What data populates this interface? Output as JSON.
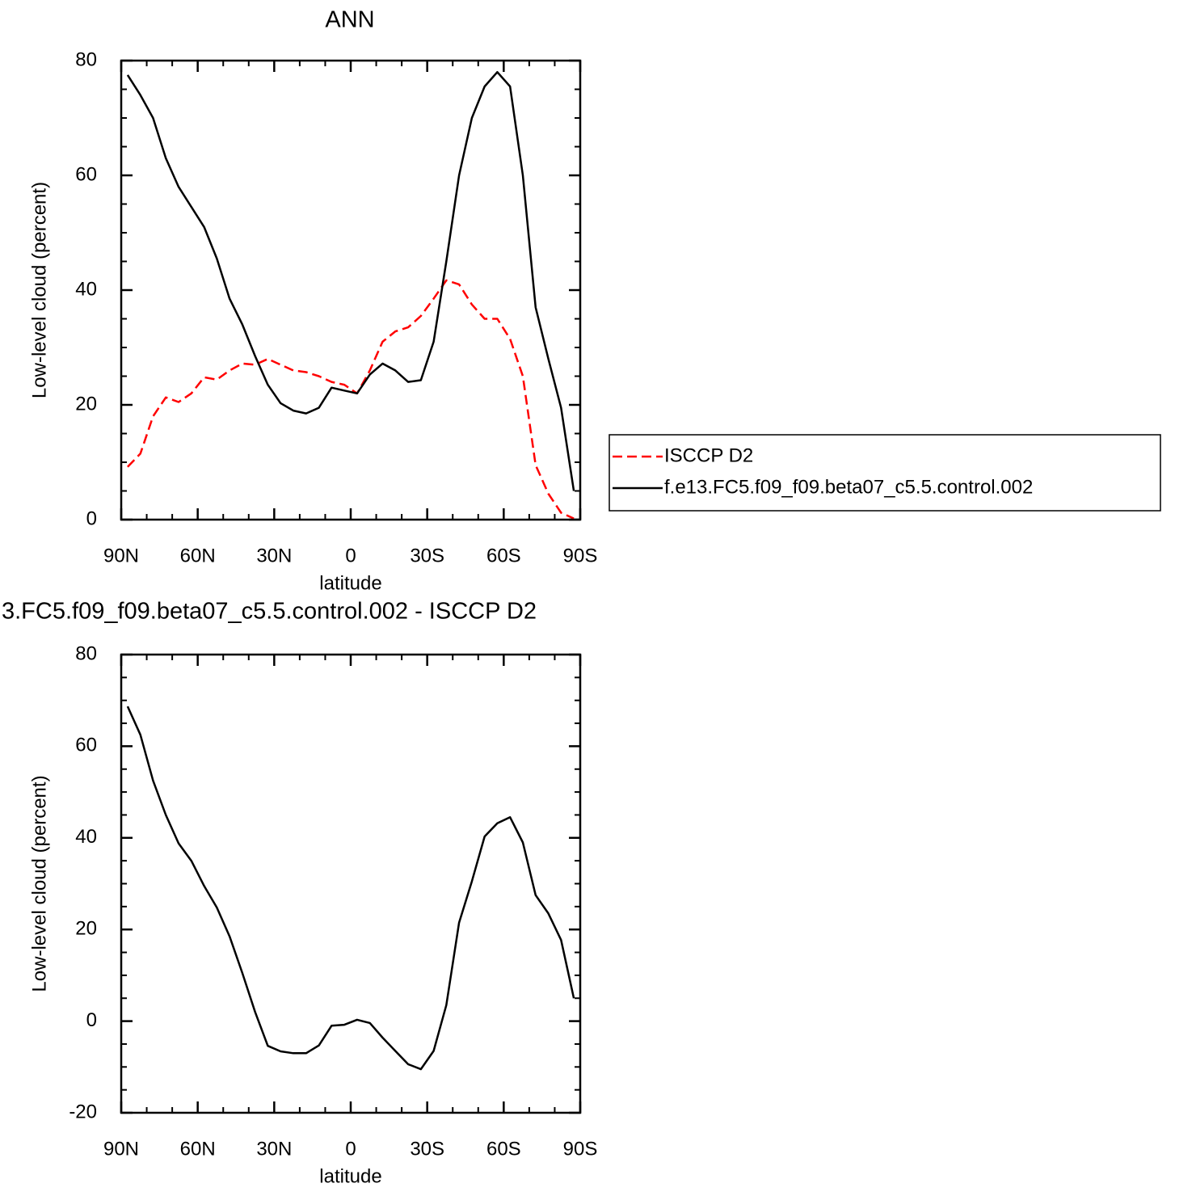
{
  "chart_data": [
    {
      "type": "line",
      "title": "ANN",
      "xlabel": "latitude",
      "ylabel": "Low-level cloud (percent)",
      "x": [
        87.5,
        82.5,
        77.5,
        72.5,
        67.5,
        62.5,
        57.5,
        52.5,
        47.5,
        42.5,
        37.5,
        32.5,
        27.5,
        22.5,
        17.5,
        12.5,
        7.5,
        2.5,
        -2.5,
        -7.5,
        -12.5,
        -17.5,
        -22.5,
        -27.5,
        -32.5,
        -37.5,
        -42.5,
        -47.5,
        -52.5,
        -57.5,
        -62.5,
        -67.5,
        -72.5,
        -77.5,
        -82.5,
        -87.5
      ],
      "series": [
        {
          "name": "ISCCP D2",
          "color": "#ff0000",
          "linestyle": "dashed",
          "values": [
            9.2,
            11.5,
            18,
            21.3,
            20.5,
            22,
            24.8,
            24.4,
            26,
            27.2,
            27,
            28,
            27,
            26,
            25.7,
            25,
            24,
            23.5,
            22,
            26,
            31,
            32.8,
            33.5,
            35.5,
            38.5,
            41.7,
            41,
            37.5,
            35,
            35,
            31.5,
            25,
            9.5,
            4.5,
            1.2,
            0.2
          ]
        },
        {
          "name": "f.e13.FC5.f09_f09.beta07_c5.5.control.002",
          "color": "#000000",
          "linestyle": "solid",
          "values": [
            77.5,
            74,
            70,
            63,
            58,
            54.5,
            51,
            45.5,
            38.5,
            34,
            28.5,
            23.5,
            20.3,
            19,
            18.5,
            19.5,
            23,
            22.5,
            22,
            25.3,
            27.2,
            26,
            24,
            24.3,
            31,
            45,
            60,
            70,
            75.5,
            78,
            75.5,
            60,
            37,
            28,
            19.5,
            5
          ]
        }
      ],
      "xlim": [
        90,
        -90
      ],
      "xticks": [
        {
          "value": 90,
          "label": "90N"
        },
        {
          "value": 60,
          "label": "60N"
        },
        {
          "value": 30,
          "label": "30N"
        },
        0,
        {
          "value": -30,
          "label": "30S"
        },
        {
          "value": -60,
          "label": "60S"
        },
        {
          "value": -90,
          "label": "90S"
        }
      ],
      "ylim": [
        0,
        80
      ],
      "yticks": [
        0,
        20,
        40,
        60,
        80
      ],
      "legend": "right"
    },
    {
      "type": "line",
      "title": "3.FC5.f09_f09.beta07_c5.5.control.002 - ISCCP D2",
      "xlabel": "latitude",
      "ylabel": "Low-level cloud (percent)",
      "x": [
        87.5,
        82.5,
        77.5,
        72.5,
        67.5,
        62.5,
        57.5,
        52.5,
        47.5,
        42.5,
        37.5,
        32.5,
        27.5,
        22.5,
        17.5,
        12.5,
        7.5,
        2.5,
        -2.5,
        -7.5,
        -12.5,
        -17.5,
        -22.5,
        -27.5,
        -32.5,
        -37.5,
        -42.5,
        -47.5,
        -52.5,
        -57.5,
        -62.5,
        -67.5,
        -72.5,
        -77.5,
        -82.5,
        -87.5
      ],
      "series": [
        {
          "color": "#000000",
          "linestyle": "solid",
          "values": [
            68.7,
            62.5,
            52.5,
            45,
            38.8,
            35,
            29.5,
            24.8,
            18.5,
            10.5,
            2,
            -5.4,
            -6.6,
            -7,
            -7,
            -5.3,
            -1,
            -0.8,
            0.3,
            -0.4,
            -3.6,
            -6.5,
            -9.4,
            -10.5,
            -6.5,
            3.5,
            21.5,
            30.5,
            40.3,
            43.2,
            44.5,
            39,
            27.5,
            23.5,
            17.7,
            5
          ]
        }
      ],
      "xlim": [
        90,
        -90
      ],
      "xticks": [
        {
          "value": 90,
          "label": "90N"
        },
        {
          "value": 60,
          "label": "60N"
        },
        {
          "value": 30,
          "label": "30N"
        },
        0,
        {
          "value": -30,
          "label": "30S"
        },
        {
          "value": -60,
          "label": "60S"
        },
        {
          "value": -90,
          "label": "90S"
        }
      ],
      "ylim": [
        -20,
        80
      ],
      "yticks": [
        -20,
        0,
        20,
        40,
        60,
        80
      ]
    }
  ]
}
